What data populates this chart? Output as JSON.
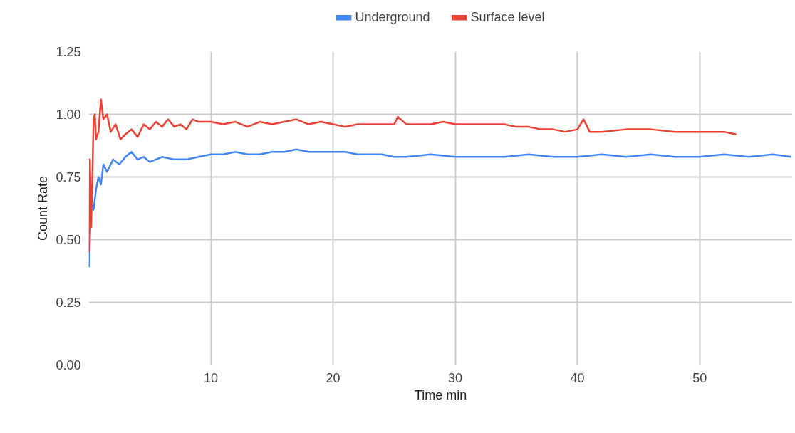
{
  "chart_data": {
    "type": "line",
    "xlabel": "Time min",
    "ylabel": "Count Rate",
    "xlim": [
      0,
      57.6
    ],
    "ylim": [
      0,
      1.25
    ],
    "xticks": [
      10,
      20,
      30,
      40,
      50
    ],
    "yticks": [
      {
        "value": 0,
        "label": "0.00"
      },
      {
        "value": 0.25,
        "label": "0.25"
      },
      {
        "value": 0.5,
        "label": "0.50"
      },
      {
        "value": 0.75,
        "label": "0.75"
      },
      {
        "value": 1,
        "label": "1.00"
      },
      {
        "value": 1.25,
        "label": "1.25"
      }
    ],
    "grid": true,
    "legend": "top",
    "marker": "none",
    "line_style": "solid",
    "series": [
      {
        "name": "Underground",
        "color": "#4285f4",
        "x": [
          0.05,
          0.1,
          0.2,
          0.4,
          0.6,
          0.8,
          1.0,
          1.2,
          1.5,
          2,
          2.5,
          3,
          3.5,
          4,
          4.5,
          5,
          6,
          7,
          8,
          9,
          10,
          11,
          12,
          13,
          14,
          15,
          16,
          17,
          18,
          19,
          20,
          21,
          22,
          23,
          24,
          25,
          26,
          28,
          30,
          32,
          33,
          34,
          36,
          38,
          40,
          42,
          44,
          46,
          48,
          50,
          52,
          54,
          56,
          57.5
        ],
        "values": [
          0.39,
          0.5,
          0.65,
          0.62,
          0.7,
          0.75,
          0.72,
          0.8,
          0.77,
          0.82,
          0.8,
          0.83,
          0.85,
          0.82,
          0.83,
          0.81,
          0.83,
          0.82,
          0.82,
          0.83,
          0.84,
          0.84,
          0.85,
          0.84,
          0.84,
          0.85,
          0.85,
          0.86,
          0.85,
          0.85,
          0.85,
          0.85,
          0.84,
          0.84,
          0.84,
          0.83,
          0.83,
          0.84,
          0.83,
          0.83,
          0.83,
          0.83,
          0.84,
          0.83,
          0.83,
          0.84,
          0.83,
          0.84,
          0.83,
          0.83,
          0.84,
          0.83,
          0.84,
          0.83
        ]
      },
      {
        "name": "Surface level",
        "color": "#ea4335",
        "x": [
          0.05,
          0.1,
          0.2,
          0.3,
          0.4,
          0.5,
          0.6,
          0.8,
          1.0,
          1.2,
          1.5,
          1.8,
          2.2,
          2.6,
          3.0,
          3.5,
          4,
          4.5,
          5,
          5.5,
          6,
          6.5,
          7,
          7.5,
          8,
          8.5,
          9,
          10,
          11,
          12,
          13,
          14,
          15,
          16,
          17,
          18,
          19,
          20,
          21,
          22,
          23,
          24,
          25,
          25.3,
          26,
          27,
          28,
          29,
          30,
          31,
          32,
          33,
          34,
          35,
          36,
          37,
          38,
          39,
          40,
          40.5,
          41,
          42,
          44,
          46,
          48,
          50,
          52,
          53
        ],
        "values": [
          0.45,
          0.82,
          0.55,
          0.75,
          0.98,
          1.0,
          0.9,
          0.93,
          1.06,
          0.98,
          1.0,
          0.93,
          0.96,
          0.9,
          0.92,
          0.94,
          0.91,
          0.96,
          0.94,
          0.97,
          0.95,
          0.98,
          0.95,
          0.96,
          0.94,
          0.98,
          0.97,
          0.97,
          0.96,
          0.97,
          0.95,
          0.97,
          0.96,
          0.97,
          0.98,
          0.96,
          0.97,
          0.96,
          0.95,
          0.96,
          0.96,
          0.96,
          0.96,
          0.99,
          0.96,
          0.96,
          0.96,
          0.97,
          0.96,
          0.96,
          0.96,
          0.96,
          0.96,
          0.95,
          0.95,
          0.94,
          0.94,
          0.93,
          0.94,
          0.98,
          0.93,
          0.93,
          0.94,
          0.94,
          0.93,
          0.93,
          0.93,
          0.92
        ]
      }
    ]
  }
}
